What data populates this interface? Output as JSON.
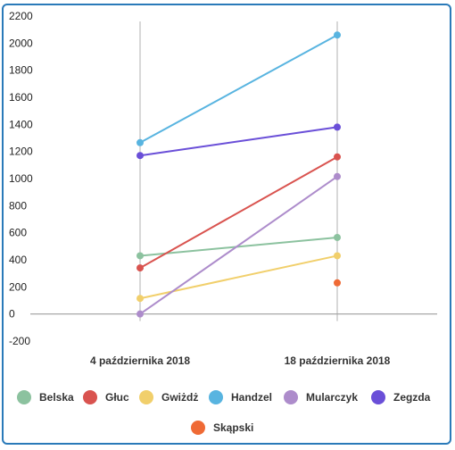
{
  "chart_data": {
    "type": "line",
    "categories": [
      "4 października 2018",
      "18 października 2018"
    ],
    "ylim": [
      -200,
      2200
    ],
    "yticks": [
      -200,
      0,
      200,
      400,
      600,
      800,
      1000,
      1200,
      1400,
      1600,
      1800,
      2000,
      2200
    ],
    "grid": "vertical category lines",
    "legend_position": "bottom",
    "series": [
      {
        "name": "Belska",
        "color": "#8cc29f",
        "values": [
          430,
          565
        ]
      },
      {
        "name": "Głuc",
        "color": "#d9534f",
        "values": [
          340,
          1160
        ]
      },
      {
        "name": "Gwiżdż",
        "color": "#f1cf6b",
        "values": [
          115,
          430
        ]
      },
      {
        "name": "Handzel",
        "color": "#58b4e0",
        "values": [
          1265,
          2060
        ]
      },
      {
        "name": "Mularczyk",
        "color": "#ad8ccb",
        "values": [
          0,
          1015
        ]
      },
      {
        "name": "Zegzda",
        "color": "#6a4fd8",
        "values": [
          1170,
          1380
        ]
      },
      {
        "name": "Skąpski",
        "color": "#ef6a35",
        "values": [
          null,
          230
        ]
      }
    ]
  }
}
